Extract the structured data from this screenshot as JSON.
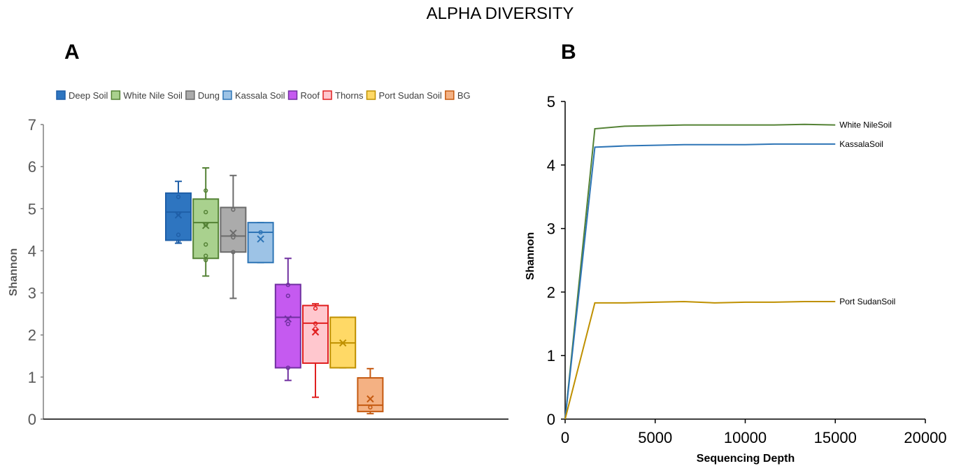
{
  "figure": {
    "title": "ALPHA DIVERSITY"
  },
  "chart_data": [
    {
      "panel": "A",
      "type": "box",
      "ylabel": "Shannon",
      "xlabel": "",
      "ylim": [
        0,
        7
      ],
      "yticks": [
        "0",
        "1",
        "2",
        "3",
        "4",
        "5",
        "6",
        "7"
      ],
      "legend_position": "top",
      "groups": [
        {
          "name": "Deep Soil",
          "stroke": "#1f5fa8",
          "fill": "#2e75c0",
          "min": 4.18,
          "q1": 4.25,
          "median": 4.92,
          "q3": 5.37,
          "max": 5.65,
          "mean": 4.85,
          "points": [
            4.22,
            4.38,
            4.88,
            5.28
          ]
        },
        {
          "name": "White Nile Soil",
          "stroke": "#548235",
          "fill": "#a9d18e",
          "min": 3.4,
          "q1": 3.82,
          "median": 4.67,
          "q3": 5.23,
          "max": 5.97,
          "mean": 4.6,
          "points": [
            3.78,
            3.88,
            4.15,
            4.62,
            4.92,
            5.43
          ]
        },
        {
          "name": "Dung",
          "stroke": "#6b6b6b",
          "fill": "#ababab",
          "min": 2.87,
          "q1": 3.97,
          "median": 4.35,
          "q3": 5.03,
          "max": 5.79,
          "mean": 4.42,
          "points": [
            3.97,
            4.32,
            4.98
          ]
        },
        {
          "name": "Kassala Soil",
          "stroke": "#2e75b6",
          "fill": "#9dc3e6",
          "min": 3.72,
          "q1": 3.72,
          "median": 4.44,
          "q3": 4.67,
          "max": 4.67,
          "mean": 4.28,
          "points": [
            4.44
          ]
        },
        {
          "name": "Roof",
          "stroke": "#7030a0",
          "fill": "#c55af0",
          "min": 0.92,
          "q1": 1.22,
          "median": 2.42,
          "q3": 3.2,
          "max": 3.82,
          "mean": 2.38,
          "points": [
            1.22,
            2.26,
            2.93,
            3.19
          ]
        },
        {
          "name": "Thorns",
          "stroke": "#e02020",
          "fill": "#ffc7ce",
          "min": 0.52,
          "q1": 1.33,
          "median": 2.28,
          "q3": 2.7,
          "max": 2.74,
          "mean": 2.07,
          "points": [
            2.15,
            2.27,
            2.63
          ]
        },
        {
          "name": "Port Sudan Soil",
          "stroke": "#bf9000",
          "fill": "#ffd966",
          "min": 1.22,
          "q1": 1.22,
          "median": 1.81,
          "q3": 2.42,
          "max": 2.42,
          "mean": 1.81,
          "points": []
        },
        {
          "name": "BG",
          "stroke": "#c55a11",
          "fill": "#f4b183",
          "min": 0.13,
          "q1": 0.18,
          "median": 0.33,
          "q3": 0.98,
          "max": 1.2,
          "mean": 0.48,
          "points": [
            0.28
          ]
        }
      ]
    },
    {
      "panel": "B",
      "type": "line",
      "xlabel": "Sequencing Depth",
      "ylabel": "Shannon",
      "xlim": [
        0,
        20000
      ],
      "ylim": [
        0,
        5
      ],
      "xticks": [
        "0",
        "5000",
        "10000",
        "15000",
        "20000"
      ],
      "yticks": [
        "0",
        "1",
        "2",
        "3",
        "4",
        "5"
      ],
      "series": [
        {
          "name": "White NileSoil",
          "color": "#548235",
          "x": [
            0,
            1650,
            3300,
            5000,
            6600,
            8300,
            10000,
            11600,
            13300,
            15000
          ],
          "y": [
            0,
            4.57,
            4.61,
            4.62,
            4.63,
            4.63,
            4.63,
            4.63,
            4.64,
            4.63
          ]
        },
        {
          "name": "KassalaSoil",
          "color": "#2e75b6",
          "x": [
            0,
            1650,
            3300,
            5000,
            6600,
            8300,
            10000,
            11600,
            13300,
            15000
          ],
          "y": [
            0,
            4.28,
            4.3,
            4.31,
            4.32,
            4.32,
            4.32,
            4.33,
            4.33,
            4.33
          ]
        },
        {
          "name": "Port SudanSoil",
          "color": "#bf9000",
          "x": [
            0,
            1650,
            3300,
            5000,
            6600,
            8300,
            10000,
            11600,
            13300,
            15000
          ],
          "y": [
            0,
            1.83,
            1.83,
            1.84,
            1.85,
            1.83,
            1.84,
            1.84,
            1.85,
            1.85
          ]
        }
      ]
    }
  ]
}
